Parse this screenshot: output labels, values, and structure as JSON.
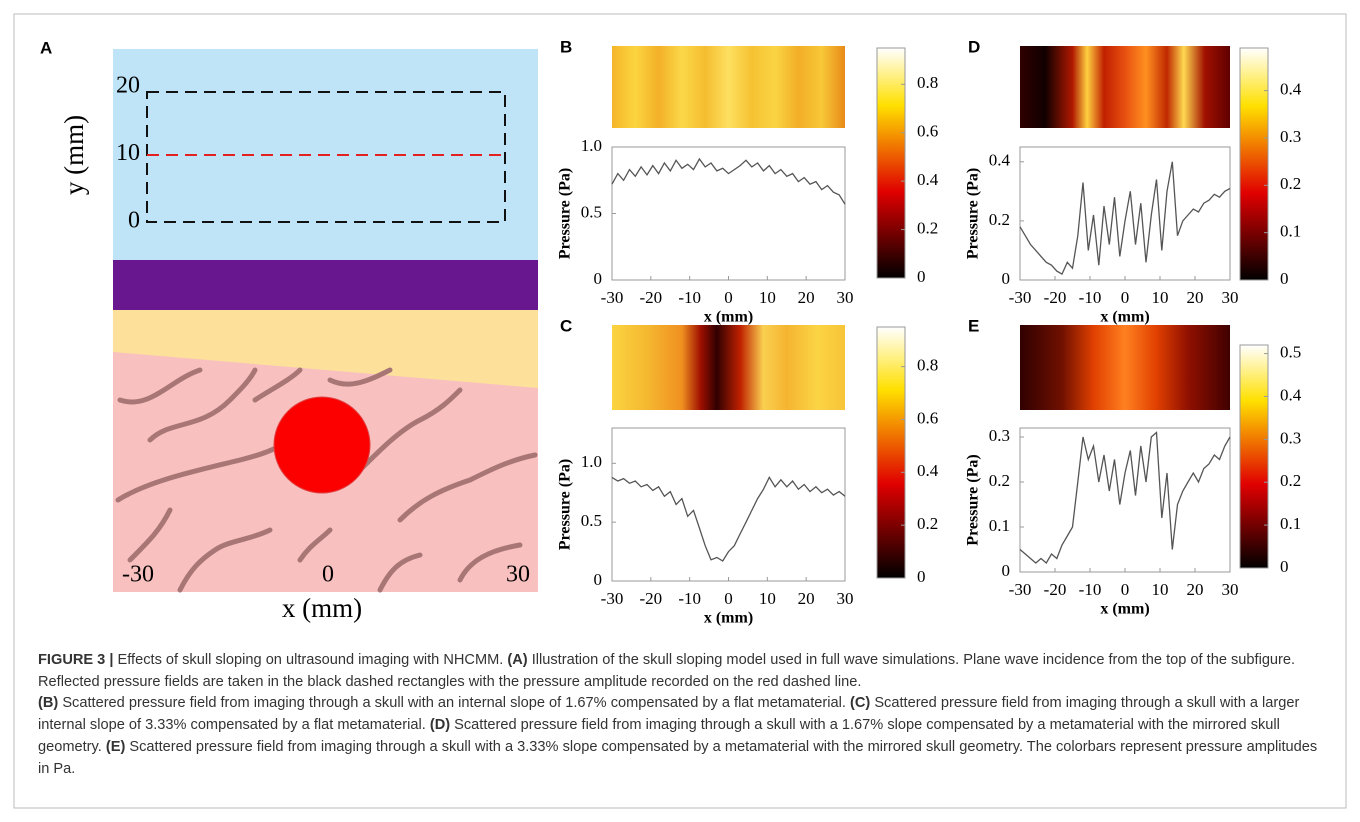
{
  "panel_a": {
    "label": "A",
    "xlabel": "x (mm)",
    "ylabel": "y (mm)",
    "xticks": [
      -30,
      0,
      30
    ],
    "yticks": [
      0,
      10,
      20
    ]
  },
  "chart_data": [
    {
      "type": "line",
      "label": "B",
      "xlabel": "x (mm)",
      "ylabel": "Pressure (Pa)",
      "color": "#555555",
      "x": [
        -30,
        -28.5,
        -27,
        -25.5,
        -24,
        -22.5,
        -21,
        -19.5,
        -18,
        -16.5,
        -15,
        -13.5,
        -12,
        -10.5,
        -9,
        -7.5,
        -6,
        -4.5,
        -3,
        -1.5,
        0,
        1.5,
        3,
        4.5,
        6,
        7.5,
        9,
        10.5,
        12,
        13.5,
        15,
        16.5,
        18,
        19.5,
        21,
        22.5,
        24,
        25.5,
        27,
        28.5,
        30
      ],
      "values": [
        0.72,
        0.8,
        0.75,
        0.83,
        0.78,
        0.85,
        0.79,
        0.86,
        0.8,
        0.88,
        0.82,
        0.9,
        0.84,
        0.87,
        0.83,
        0.91,
        0.85,
        0.88,
        0.82,
        0.84,
        0.8,
        0.83,
        0.86,
        0.9,
        0.85,
        0.88,
        0.82,
        0.86,
        0.8,
        0.83,
        0.78,
        0.8,
        0.74,
        0.77,
        0.72,
        0.74,
        0.68,
        0.71,
        0.66,
        0.64,
        0.57
      ],
      "xlim": [
        -30,
        30
      ],
      "xticks": [
        -30,
        -20,
        -10,
        0,
        10,
        20,
        30
      ],
      "ylim": [
        0,
        1
      ],
      "yticks": [
        0,
        0.5,
        {
          "value": 1,
          "label": "1.0"
        }
      ],
      "clim": [
        0,
        0.95
      ],
      "cticks": [
        0,
        0.2,
        0.4,
        0.6,
        0.8
      ]
    },
    {
      "type": "line",
      "label": "C",
      "xlabel": "x (mm)",
      "ylabel": "Pressure (Pa)",
      "color": "#555555",
      "x": [
        -30,
        -28.5,
        -27,
        -25.5,
        -24,
        -22.5,
        -21,
        -19.5,
        -18,
        -16.5,
        -15,
        -13.5,
        -12,
        -10.5,
        -9,
        -7.5,
        -6,
        -4.5,
        -3,
        -1.5,
        0,
        1.5,
        3,
        4.5,
        6,
        7.5,
        9,
        10.5,
        12,
        13.5,
        15,
        16.5,
        18,
        19.5,
        21,
        22.5,
        24,
        25.5,
        27,
        28.5,
        30
      ],
      "values": [
        0.88,
        0.85,
        0.87,
        0.83,
        0.85,
        0.8,
        0.82,
        0.77,
        0.8,
        0.72,
        0.76,
        0.65,
        0.7,
        0.55,
        0.6,
        0.45,
        0.3,
        0.18,
        0.2,
        0.17,
        0.25,
        0.3,
        0.4,
        0.5,
        0.6,
        0.7,
        0.78,
        0.88,
        0.8,
        0.86,
        0.8,
        0.85,
        0.78,
        0.82,
        0.76,
        0.8,
        0.75,
        0.78,
        0.73,
        0.76,
        0.72
      ],
      "xlim": [
        -30,
        30
      ],
      "xticks": [
        -30,
        -20,
        -10,
        0,
        10,
        20,
        30
      ],
      "ylim": [
        0,
        1.3
      ],
      "yticks": [
        0,
        0.5,
        {
          "value": 1,
          "label": "1.0"
        }
      ],
      "clim": [
        0,
        0.95
      ],
      "cticks": [
        0,
        0.2,
        0.4,
        0.6,
        0.8
      ]
    },
    {
      "type": "line",
      "label": "D",
      "xlabel": "x (mm)",
      "ylabel": "Pressure (Pa)",
      "color": "#555555",
      "x": [
        -30,
        -28.5,
        -27,
        -25.5,
        -24,
        -22.5,
        -21,
        -19.5,
        -18,
        -16.5,
        -15,
        -13.5,
        -12,
        -10.5,
        -9,
        -7.5,
        -6,
        -4.5,
        -3,
        -1.5,
        0,
        1.5,
        3,
        4.5,
        6,
        7.5,
        9,
        10.5,
        12,
        13.5,
        15,
        16.5,
        18,
        19.5,
        21,
        22.5,
        24,
        25.5,
        27,
        28.5,
        30
      ],
      "values": [
        0.18,
        0.15,
        0.12,
        0.1,
        0.08,
        0.06,
        0.05,
        0.03,
        0.02,
        0.06,
        0.04,
        0.15,
        0.33,
        0.1,
        0.22,
        0.05,
        0.25,
        0.12,
        0.28,
        0.08,
        0.2,
        0.3,
        0.12,
        0.26,
        0.06,
        0.22,
        0.34,
        0.1,
        0.3,
        0.4,
        0.15,
        0.2,
        0.22,
        0.24,
        0.23,
        0.26,
        0.27,
        0.29,
        0.28,
        0.3,
        0.31
      ],
      "xlim": [
        -30,
        30
      ],
      "xticks": [
        -30,
        -20,
        -10,
        0,
        10,
        20,
        30
      ],
      "ylim": [
        0,
        0.45
      ],
      "yticks": [
        0,
        0.2,
        0.4
      ],
      "clim": [
        0,
        0.49
      ],
      "cticks": [
        0,
        0.1,
        0.2,
        0.3,
        0.4
      ]
    },
    {
      "type": "line",
      "label": "E",
      "xlabel": "x (mm)",
      "ylabel": "Pressure (Pa)",
      "color": "#555555",
      "x": [
        -30,
        -28.5,
        -27,
        -25.5,
        -24,
        -22.5,
        -21,
        -19.5,
        -18,
        -16.5,
        -15,
        -13.5,
        -12,
        -10.5,
        -9,
        -7.5,
        -6,
        -4.5,
        -3,
        -1.5,
        0,
        1.5,
        3,
        4.5,
        6,
        7.5,
        9,
        10.5,
        12,
        13.5,
        15,
        16.5,
        18,
        19.5,
        21,
        22.5,
        24,
        25.5,
        27,
        28.5,
        30
      ],
      "values": [
        0.05,
        0.04,
        0.03,
        0.02,
        0.03,
        0.02,
        0.04,
        0.03,
        0.06,
        0.08,
        0.1,
        0.2,
        0.3,
        0.25,
        0.28,
        0.2,
        0.26,
        0.18,
        0.25,
        0.15,
        0.22,
        0.27,
        0.17,
        0.28,
        0.2,
        0.3,
        0.31,
        0.12,
        0.22,
        0.05,
        0.15,
        0.18,
        0.2,
        0.22,
        0.2,
        0.23,
        0.24,
        0.26,
        0.25,
        0.28,
        0.3
      ],
      "xlim": [
        -30,
        30
      ],
      "xticks": [
        -30,
        -20,
        -10,
        0,
        10,
        20,
        30
      ],
      "ylim": [
        0,
        0.32
      ],
      "yticks": [
        0,
        0.1,
        0.2,
        0.3
      ],
      "clim": [
        0,
        0.52
      ],
      "cticks": [
        0,
        0.1,
        0.2,
        0.3,
        0.4,
        0.5
      ]
    }
  ],
  "caption": {
    "figure_label": "FIGURE 3 |",
    "intro": "Effects of skull sloping on ultrasound imaging with NHCMM.",
    "parts": [
      {
        "label": "(A)",
        "text": "Illustration of the skull sloping model used in full wave simulations. Plane wave incidence from the top of the subfigure. Reflected pressure fields are taken in the black dashed rectangles with the pressure amplitude recorded on the red dashed line."
      },
      {
        "label": "(B)",
        "text": "Scattered pressure field from imaging through a skull with an internal slope of 1.67% compensated by a flat metamaterial."
      },
      {
        "label": "(C)",
        "text": "Scattered pressure field from imaging through a skull with a larger internal slope of 3.33% compensated by a flat metamaterial."
      },
      {
        "label": "(D)",
        "text": "Scattered pressure field from imaging through a skull with a 1.67% slope compensated by a metamaterial with the mirrored skull geometry."
      },
      {
        "label": "(E)",
        "text": "Scattered pressure field from imaging through a skull with a 3.33% slope compensated by a metamaterial with the mirrored skull geometry. The colorbars represent pressure amplitudes in Pa."
      }
    ]
  }
}
